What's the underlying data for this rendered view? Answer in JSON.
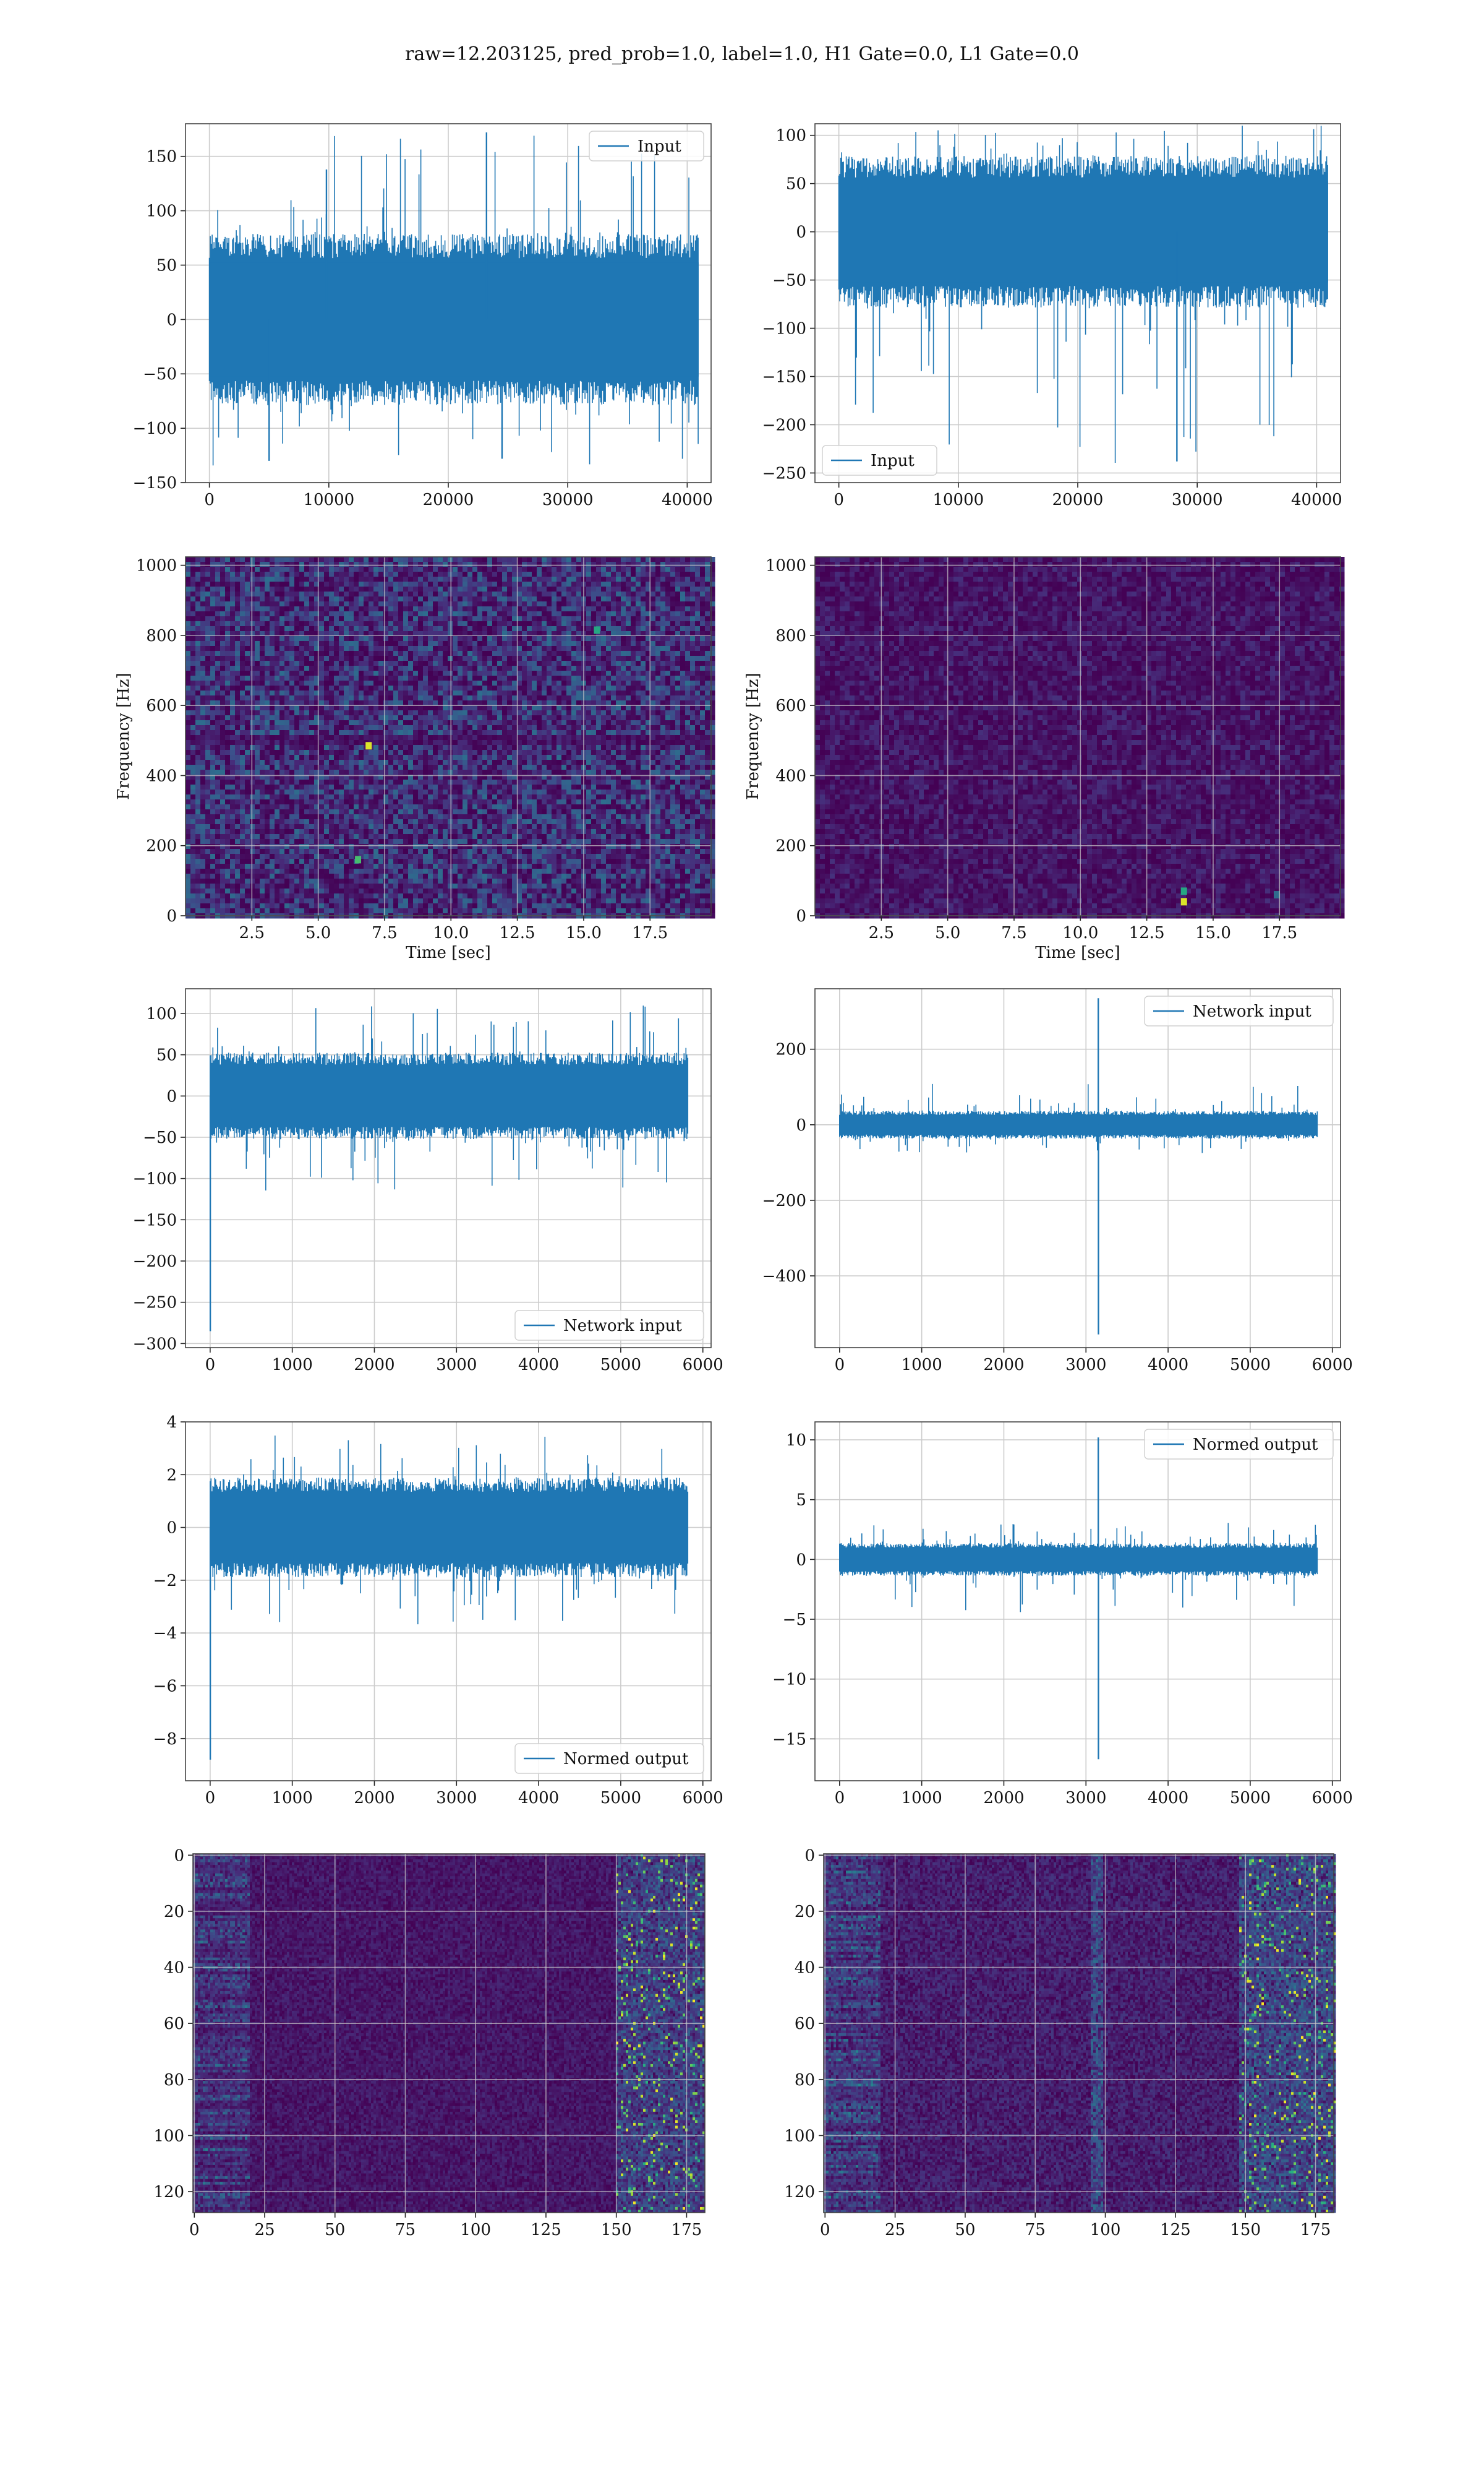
{
  "figure": {
    "suptitle": "raw=12.203125, pred_prob=1.0, label=1.0, H1 Gate=0.0, L1 Gate=0.0"
  },
  "colors": {
    "line": "#1f77b4",
    "grid": "#cccccc",
    "spine": "#444444",
    "viridis": [
      "#440154",
      "#472c7a",
      "#3b518b",
      "#2c718e",
      "#21908d",
      "#27ad81",
      "#5cc863",
      "#aadc32",
      "#fde725"
    ]
  },
  "chart_data": [
    {
      "id": "h1-input",
      "type": "line",
      "legend": "Input",
      "legend_loc": "upper right",
      "xlim": [
        -2000,
        42000
      ],
      "ylim": [
        -150,
        180
      ],
      "xticks": [
        0,
        10000,
        20000,
        30000,
        40000
      ],
      "yticks": [
        -150,
        -100,
        -50,
        0,
        50,
        100,
        150
      ],
      "n_samples": 40960,
      "band": [
        -75,
        75
      ],
      "spike_max": 172,
      "spike_min": -135,
      "outliers": [
        {
          "x": 23200,
          "y": 172
        },
        {
          "x": 9800,
          "y": 138
        },
        {
          "x": 5000,
          "y": -130
        },
        {
          "x": 24500,
          "y": -128
        }
      ]
    },
    {
      "id": "l1-input",
      "type": "line",
      "legend": "Input",
      "legend_loc": "lower left",
      "xlim": [
        -2000,
        42000
      ],
      "ylim": [
        -260,
        112
      ],
      "xticks": [
        0,
        10000,
        20000,
        30000,
        40000
      ],
      "yticks": [
        -250,
        -200,
        -150,
        -100,
        -50,
        0,
        50,
        100
      ],
      "n_samples": 40960,
      "band": [
        -75,
        75
      ],
      "spike_max": 110,
      "spike_min": -240,
      "outliers": [
        {
          "x": 28300,
          "y": -238
        }
      ]
    },
    {
      "id": "h1-spectrogram",
      "type": "heatmap",
      "xlabel": "Time [sec]",
      "ylabel": "Frequency [Hz]",
      "xlim": [
        0,
        19.8
      ],
      "ylim": [
        0,
        1024
      ],
      "xticks": [
        2.5,
        5.0,
        7.5,
        10.0,
        12.5,
        15.0,
        17.5
      ],
      "yticks": [
        0,
        200,
        400,
        600,
        800,
        1000
      ],
      "level": 0.3,
      "line_freq": 500,
      "hotspots": [
        {
          "t": 6.9,
          "f": 485,
          "v": 0.95
        },
        {
          "t": 15.5,
          "f": 815,
          "v": 0.6
        },
        {
          "t": 6.5,
          "f": 160,
          "v": 0.7
        }
      ]
    },
    {
      "id": "l1-spectrogram",
      "type": "heatmap",
      "xlabel": "Time [sec]",
      "ylabel": "Frequency [Hz]",
      "xlim": [
        0,
        19.8
      ],
      "ylim": [
        0,
        1024
      ],
      "xticks": [
        2.5,
        5.0,
        7.5,
        10.0,
        12.5,
        15.0,
        17.5
      ],
      "yticks": [
        0,
        200,
        400,
        600,
        800,
        1000
      ],
      "level": 0.12,
      "hotspots": [
        {
          "t": 13.9,
          "f": 40,
          "v": 0.95
        },
        {
          "t": 13.9,
          "f": 70,
          "v": 0.6
        },
        {
          "t": 17.4,
          "f": 60,
          "v": 0.35
        }
      ]
    },
    {
      "id": "h1-network-input",
      "type": "line",
      "legend": "Network input",
      "legend_loc": "lower right",
      "xlim": [
        -300,
        6100
      ],
      "ylim": [
        -305,
        130
      ],
      "xticks": [
        0,
        1000,
        2000,
        3000,
        4000,
        5000,
        6000
      ],
      "yticks": [
        -300,
        -250,
        -200,
        -150,
        -100,
        -50,
        0,
        50,
        100
      ],
      "n_samples": 5820,
      "band": [
        -50,
        50
      ],
      "spike_max": 110,
      "spike_min": -115,
      "outliers": [
        {
          "x": 2,
          "y": -285
        }
      ]
    },
    {
      "id": "l1-network-input",
      "type": "line",
      "legend": "Network input",
      "legend_loc": "upper right",
      "xlim": [
        -300,
        6100
      ],
      "ylim": [
        -590,
        360
      ],
      "xticks": [
        0,
        1000,
        2000,
        3000,
        4000,
        5000,
        6000
      ],
      "yticks": [
        -400,
        -200,
        0,
        200
      ],
      "n_samples": 5820,
      "band": [
        -35,
        35
      ],
      "spike_max": 110,
      "spike_min": -75,
      "outliers": [
        {
          "x": 3150,
          "y": 335
        },
        {
          "x": 3152,
          "y": -555
        }
      ]
    },
    {
      "id": "h1-normed-output",
      "type": "line",
      "legend": "Normed output",
      "legend_loc": "lower right",
      "xlim": [
        -300,
        6100
      ],
      "ylim": [
        -9.6,
        4
      ],
      "xticks": [
        0,
        1000,
        2000,
        3000,
        4000,
        5000,
        6000
      ],
      "yticks": [
        -8,
        -6,
        -4,
        -2,
        0,
        2,
        4
      ],
      "n_samples": 5820,
      "band": [
        -1.8,
        1.8
      ],
      "spike_max": 3.5,
      "spike_min": -3.7,
      "outliers": [
        {
          "x": 2,
          "y": -8.8
        }
      ]
    },
    {
      "id": "l1-normed-output",
      "type": "line",
      "legend": "Normed output",
      "legend_loc": "upper right",
      "xlim": [
        -300,
        6100
      ],
      "ylim": [
        -18.5,
        11.5
      ],
      "xticks": [
        0,
        1000,
        2000,
        3000,
        4000,
        5000,
        6000
      ],
      "yticks": [
        -15,
        -10,
        -5,
        0,
        5,
        10
      ],
      "n_samples": 5820,
      "band": [
        -1.3,
        1.3
      ],
      "spike_max": 3.2,
      "spike_min": -4.5,
      "outliers": [
        {
          "x": 3150,
          "y": 10.2
        },
        {
          "x": 3152,
          "y": -16.7
        }
      ]
    },
    {
      "id": "h1-feature-map",
      "type": "heatmap",
      "xlim": [
        -0.5,
        181.5
      ],
      "ylim": [
        127.5,
        -0.5
      ],
      "xticks": [
        0,
        25,
        50,
        75,
        100,
        125,
        150,
        175
      ],
      "yticks": [
        0,
        20,
        40,
        60,
        80,
        100,
        120
      ],
      "rows": 128,
      "cols": 182,
      "level": 0.22,
      "bright_start": 150
    },
    {
      "id": "l1-feature-map",
      "type": "heatmap",
      "xlim": [
        -0.5,
        181.5
      ],
      "ylim": [
        127.5,
        -0.5
      ],
      "xticks": [
        0,
        25,
        50,
        75,
        100,
        125,
        150,
        175
      ],
      "yticks": [
        0,
        20,
        40,
        60,
        80,
        100,
        120
      ],
      "rows": 128,
      "cols": 182,
      "level": 0.3,
      "bright_start": 148,
      "vertical_feature": 97
    }
  ]
}
